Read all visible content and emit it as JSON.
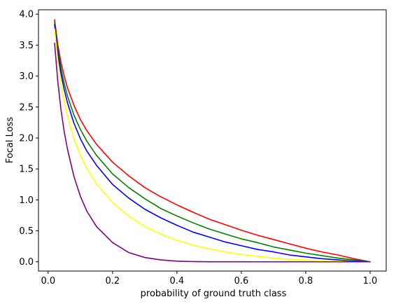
{
  "chart_data": {
    "type": "line",
    "title": "",
    "xlabel": "probability of ground truth class",
    "ylabel": "Focal Loss",
    "xlim": [
      -0.03,
      1.05
    ],
    "ylim": [
      -0.15,
      4.07
    ],
    "x_ticks": [
      0.0,
      0.2,
      0.4,
      0.6,
      0.8,
      1.0
    ],
    "x_tick_labels": [
      "0.0",
      "0.2",
      "0.4",
      "0.6",
      "0.8",
      "1.0"
    ],
    "y_ticks": [
      0.0,
      0.5,
      1.0,
      1.5,
      2.0,
      2.5,
      3.0,
      3.5,
      4.0
    ],
    "y_tick_labels": [
      "0.0",
      "0.5",
      "1.0",
      "1.5",
      "2.0",
      "2.5",
      "3.0",
      "3.5",
      "4.0"
    ],
    "grid": false,
    "legend": false,
    "x": [
      0.02,
      0.03,
      0.04,
      0.05,
      0.06,
      0.08,
      0.1,
      0.12,
      0.15,
      0.2,
      0.25,
      0.3,
      0.35,
      0.4,
      0.45,
      0.5,
      0.55,
      0.6,
      0.65,
      0.7,
      0.75,
      0.8,
      0.85,
      0.9,
      0.95,
      1.0
    ],
    "series": [
      {
        "color": "#ff0000",
        "values": [
          3.91,
          3.51,
          3.22,
          3.0,
          2.81,
          2.53,
          2.3,
          2.12,
          1.9,
          1.61,
          1.39,
          1.2,
          1.05,
          0.92,
          0.8,
          0.69,
          0.6,
          0.51,
          0.43,
          0.36,
          0.29,
          0.22,
          0.16,
          0.11,
          0.05,
          0.0
        ]
      },
      {
        "color": "#008000",
        "values": [
          3.87,
          3.44,
          3.12,
          2.88,
          2.68,
          2.37,
          2.14,
          1.95,
          1.72,
          1.42,
          1.2,
          1.02,
          0.86,
          0.74,
          0.63,
          0.53,
          0.45,
          0.37,
          0.31,
          0.24,
          0.19,
          0.14,
          0.1,
          0.06,
          0.03,
          0.0
        ]
      },
      {
        "color": "#0000ff",
        "values": [
          3.83,
          3.37,
          3.03,
          2.78,
          2.57,
          2.24,
          1.99,
          1.79,
          1.56,
          1.25,
          1.03,
          0.85,
          0.71,
          0.59,
          0.48,
          0.4,
          0.32,
          0.26,
          0.2,
          0.16,
          0.11,
          0.08,
          0.05,
          0.03,
          0.01,
          0.0
        ]
      },
      {
        "color": "#ffff00",
        "values": [
          3.76,
          3.24,
          2.87,
          2.58,
          2.35,
          1.99,
          1.72,
          1.51,
          1.26,
          0.96,
          0.74,
          0.57,
          0.45,
          0.35,
          0.27,
          0.21,
          0.16,
          0.12,
          0.09,
          0.06,
          0.04,
          0.03,
          0.01,
          0.01,
          0.0,
          0.0
        ]
      },
      {
        "color": "#800080",
        "values": [
          3.53,
          2.91,
          2.45,
          2.1,
          1.82,
          1.38,
          1.06,
          0.82,
          0.57,
          0.31,
          0.15,
          0.07,
          0.03,
          0.01,
          0.003,
          0.001,
          0.0003,
          0.0001,
          0.0,
          0.0,
          0.0,
          0.0,
          0.0,
          0.0,
          0.0,
          0.0
        ]
      }
    ]
  }
}
